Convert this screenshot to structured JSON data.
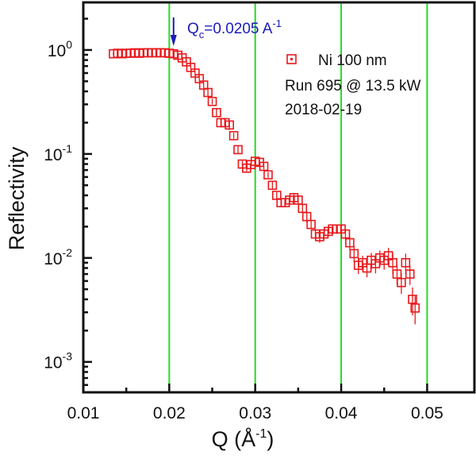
{
  "chart_data": {
    "type": "scatter",
    "title": "",
    "xlabel": "Q (Å",
    "xlabel_sup": "-1",
    "xlabel_close": ")",
    "ylabel": "Reflectivity",
    "xscale": "linear",
    "yscale": "log",
    "xlim": [
      0.01,
      0.0555
    ],
    "ylim": [
      0.00051,
      2.87
    ],
    "x_ticks": [
      0.01,
      0.02,
      0.03,
      0.04,
      0.05
    ],
    "x_tick_labels": [
      "0.01",
      "0.02",
      "0.03",
      "0.04",
      "0.05"
    ],
    "x_minor_ticks": [
      0.015,
      0.025,
      0.035,
      0.045
    ],
    "y_ticks": [
      1,
      0.1,
      0.01,
      0.001
    ],
    "y_tick_labels": [
      {
        "base": "10",
        "exp": "0"
      },
      {
        "base": "10",
        "exp": "-1"
      },
      {
        "base": "10",
        "exp": "-2"
      },
      {
        "base": "10",
        "exp": "-3"
      }
    ],
    "vertical_reference_lines": [
      0.02,
      0.03,
      0.04,
      0.05
    ],
    "colors": {
      "series": "#e8191c",
      "reference_lines": "#22dd22",
      "annotation": "#1b1bb8",
      "axes": "#111111"
    },
    "annotation": {
      "text": "Q",
      "sub": "c",
      "rest": "=0.0205 A",
      "sup": "-1",
      "arrow_x": 0.0205
    },
    "legend": {
      "placement": "top-right",
      "entries": [
        {
          "marker": "open-square",
          "label": "Ni 100 nm"
        }
      ],
      "notes": [
        "Run 695 @ 13.5 kW",
        "2018-02-19"
      ]
    },
    "series": [
      {
        "name": "Ni 100 nm",
        "marker": "open-square",
        "points": [
          {
            "x": 0.0135,
            "y": 0.92,
            "err": 0.03
          },
          {
            "x": 0.014,
            "y": 0.93,
            "err": 0.03
          },
          {
            "x": 0.0145,
            "y": 0.92,
            "err": 0.03
          },
          {
            "x": 0.015,
            "y": 0.93,
            "err": 0.03
          },
          {
            "x": 0.0155,
            "y": 0.93,
            "err": 0.03
          },
          {
            "x": 0.016,
            "y": 0.94,
            "err": 0.03
          },
          {
            "x": 0.0165,
            "y": 0.93,
            "err": 0.03
          },
          {
            "x": 0.017,
            "y": 0.94,
            "err": 0.03
          },
          {
            "x": 0.0175,
            "y": 0.94,
            "err": 0.03
          },
          {
            "x": 0.018,
            "y": 0.94,
            "err": 0.03
          },
          {
            "x": 0.0185,
            "y": 0.94,
            "err": 0.03
          },
          {
            "x": 0.019,
            "y": 0.94,
            "err": 0.03
          },
          {
            "x": 0.0195,
            "y": 0.94,
            "err": 0.03
          },
          {
            "x": 0.02,
            "y": 0.93,
            "err": 0.03
          },
          {
            "x": 0.0205,
            "y": 0.92,
            "err": 0.03
          },
          {
            "x": 0.021,
            "y": 0.89,
            "err": 0.03
          },
          {
            "x": 0.0215,
            "y": 0.84,
            "err": 0.03
          },
          {
            "x": 0.022,
            "y": 0.77,
            "err": 0.03
          },
          {
            "x": 0.0225,
            "y": 0.68,
            "err": 0.03
          },
          {
            "x": 0.023,
            "y": 0.6,
            "err": 0.03
          },
          {
            "x": 0.0235,
            "y": 0.53,
            "err": 0.03
          },
          {
            "x": 0.024,
            "y": 0.46,
            "err": 0.03
          },
          {
            "x": 0.0245,
            "y": 0.39,
            "err": 0.03
          },
          {
            "x": 0.025,
            "y": 0.32,
            "err": 0.02
          },
          {
            "x": 0.0255,
            "y": 0.25,
            "err": 0.02
          },
          {
            "x": 0.026,
            "y": 0.2,
            "err": 0.02
          },
          {
            "x": 0.0265,
            "y": 0.2,
            "err": 0.02
          },
          {
            "x": 0.027,
            "y": 0.19,
            "err": 0.02
          },
          {
            "x": 0.0275,
            "y": 0.15,
            "err": 0.01
          },
          {
            "x": 0.028,
            "y": 0.11,
            "err": 0.01
          },
          {
            "x": 0.0285,
            "y": 0.08,
            "err": 0.006
          },
          {
            "x": 0.029,
            "y": 0.073,
            "err": 0.005
          },
          {
            "x": 0.0295,
            "y": 0.079,
            "err": 0.005
          },
          {
            "x": 0.03,
            "y": 0.085,
            "err": 0.005
          },
          {
            "x": 0.0305,
            "y": 0.083,
            "err": 0.005
          },
          {
            "x": 0.031,
            "y": 0.076,
            "err": 0.005
          },
          {
            "x": 0.0315,
            "y": 0.063,
            "err": 0.004
          },
          {
            "x": 0.032,
            "y": 0.05,
            "err": 0.004
          },
          {
            "x": 0.0325,
            "y": 0.04,
            "err": 0.003
          },
          {
            "x": 0.033,
            "y": 0.034,
            "err": 0.003
          },
          {
            "x": 0.0335,
            "y": 0.034,
            "err": 0.003
          },
          {
            "x": 0.034,
            "y": 0.036,
            "err": 0.003
          },
          {
            "x": 0.0345,
            "y": 0.038,
            "err": 0.003
          },
          {
            "x": 0.035,
            "y": 0.036,
            "err": 0.003
          },
          {
            "x": 0.0355,
            "y": 0.03,
            "err": 0.003
          },
          {
            "x": 0.036,
            "y": 0.025,
            "err": 0.003
          },
          {
            "x": 0.0365,
            "y": 0.021,
            "err": 0.002
          },
          {
            "x": 0.037,
            "y": 0.017,
            "err": 0.002
          },
          {
            "x": 0.0375,
            "y": 0.016,
            "err": 0.002
          },
          {
            "x": 0.038,
            "y": 0.017,
            "err": 0.002
          },
          {
            "x": 0.0385,
            "y": 0.018,
            "err": 0.002
          },
          {
            "x": 0.039,
            "y": 0.019,
            "err": 0.002
          },
          {
            "x": 0.0395,
            "y": 0.019,
            "err": 0.002
          },
          {
            "x": 0.04,
            "y": 0.019,
            "err": 0.002
          },
          {
            "x": 0.0405,
            "y": 0.017,
            "err": 0.002
          },
          {
            "x": 0.041,
            "y": 0.014,
            "err": 0.002
          },
          {
            "x": 0.0415,
            "y": 0.011,
            "err": 0.002
          },
          {
            "x": 0.042,
            "y": 0.0085,
            "err": 0.0015
          },
          {
            "x": 0.0425,
            "y": 0.009,
            "err": 0.0015
          },
          {
            "x": 0.043,
            "y": 0.008,
            "err": 0.0015
          },
          {
            "x": 0.0435,
            "y": 0.0095,
            "err": 0.0017
          },
          {
            "x": 0.044,
            "y": 0.0088,
            "err": 0.0017
          },
          {
            "x": 0.0445,
            "y": 0.01,
            "err": 0.0018
          },
          {
            "x": 0.045,
            "y": 0.0095,
            "err": 0.0018
          },
          {
            "x": 0.0455,
            "y": 0.0105,
            "err": 0.002
          },
          {
            "x": 0.046,
            "y": 0.009,
            "err": 0.002
          },
          {
            "x": 0.0465,
            "y": 0.007,
            "err": 0.0015
          },
          {
            "x": 0.047,
            "y": 0.0058,
            "err": 0.0013
          },
          {
            "x": 0.0475,
            "y": 0.009,
            "err": 0.002
          },
          {
            "x": 0.048,
            "y": 0.007,
            "err": 0.0015
          },
          {
            "x": 0.0483,
            "y": 0.004,
            "err": 0.0012
          },
          {
            "x": 0.0486,
            "y": 0.0033,
            "err": 0.001
          }
        ]
      }
    ]
  }
}
